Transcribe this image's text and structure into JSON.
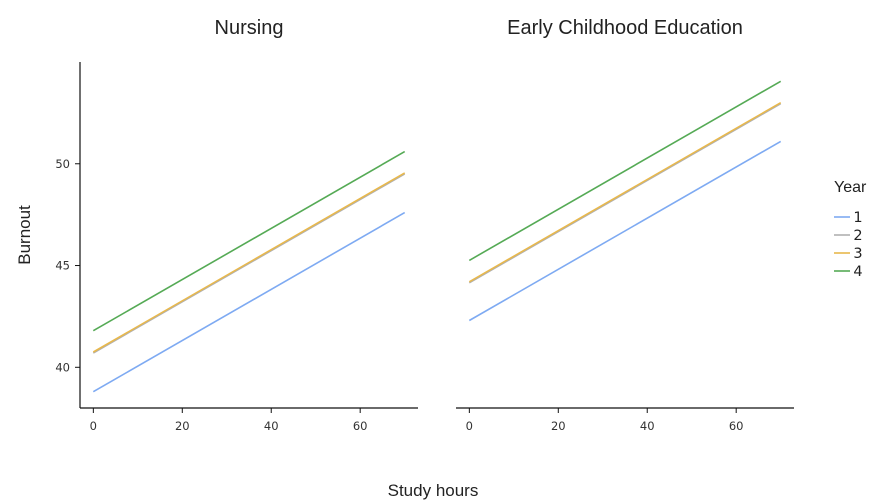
{
  "chart_data": {
    "type": "line",
    "ylabel": "Burnout",
    "xlabel": "Study hours",
    "legend": {
      "title": "Year",
      "position": "right"
    },
    "xlim": [
      -3,
      73
    ],
    "ylim": [
      38,
      55
    ],
    "x_ticks": [
      0,
      20,
      40,
      60
    ],
    "y_ticks": [
      40,
      45,
      50
    ],
    "series_styles": [
      {
        "name": "1",
        "color": "#7eaaf2"
      },
      {
        "name": "2",
        "color": "#b0b0b0"
      },
      {
        "name": "3",
        "color": "#e8b84c"
      },
      {
        "name": "4",
        "color": "#55aa55"
      }
    ],
    "panels": [
      {
        "title": "Nursing",
        "series": [
          {
            "name": "1",
            "x": [
              0,
              70
            ],
            "values": [
              38.8,
              47.6
            ]
          },
          {
            "name": "2",
            "x": [
              0,
              70
            ],
            "values": [
              40.7,
              49.5
            ]
          },
          {
            "name": "3",
            "x": [
              0,
              70
            ],
            "values": [
              40.75,
              49.55
            ]
          },
          {
            "name": "4",
            "x": [
              0,
              70
            ],
            "values": [
              41.8,
              50.6
            ]
          }
        ]
      },
      {
        "title": "Early Childhood Education",
        "series": [
          {
            "name": "1",
            "x": [
              0,
              70
            ],
            "values": [
              42.3,
              51.1
            ]
          },
          {
            "name": "2",
            "x": [
              0,
              70
            ],
            "values": [
              44.15,
              52.95
            ]
          },
          {
            "name": "3",
            "x": [
              0,
              70
            ],
            "values": [
              44.2,
              53.0
            ]
          },
          {
            "name": "4",
            "x": [
              0,
              70
            ],
            "values": [
              45.25,
              54.05
            ]
          }
        ]
      }
    ]
  }
}
